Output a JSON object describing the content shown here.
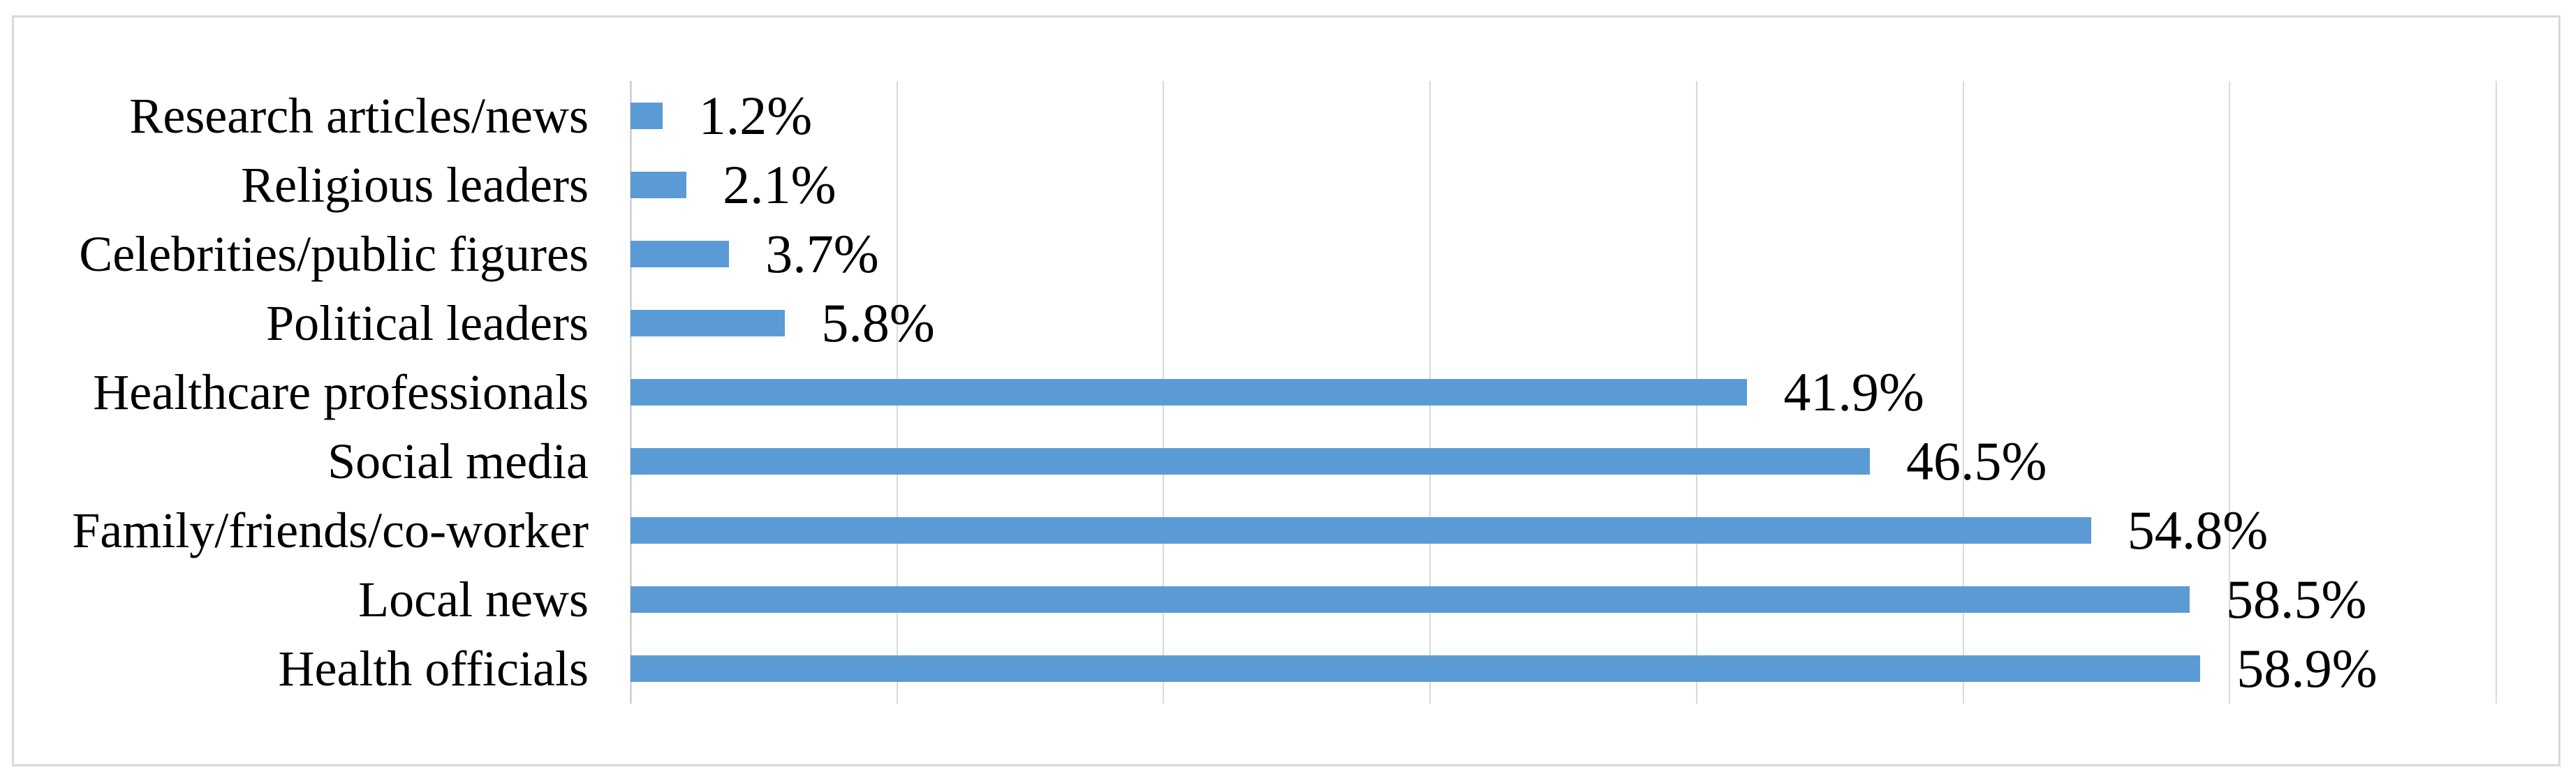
{
  "page": {
    "background_color": "#ffffff",
    "chart_border_color": "#D9D9D9"
  },
  "chart_data": {
    "type": "bar",
    "orientation": "horizontal",
    "title": "",
    "xlabel": "",
    "ylabel": "",
    "categories": [
      "Research articles/news",
      "Religious leaders",
      "Celebrities/public figures",
      "Political leaders",
      "Healthcare professionals",
      "Social media",
      "Family/friends/co-worker",
      "Local news",
      "Health officials"
    ],
    "values": [
      1.2,
      2.1,
      3.7,
      5.8,
      41.9,
      46.5,
      54.8,
      58.5,
      58.9
    ],
    "value_labels": [
      "1.2%",
      "2.1%",
      "3.7%",
      "5.8%",
      "41.9%",
      "46.5%",
      "54.8%",
      "58.5%",
      "58.9%"
    ],
    "xlim": [
      0,
      70
    ],
    "xtick_interval": 10,
    "xtick_labels_shown": false,
    "grid": "vertical",
    "legend": "none",
    "bar_color": "#5B9BD5",
    "gridline_color": "#D9D9D9",
    "axis_line_color": "#D4D4D4",
    "text_color": "#000000"
  }
}
